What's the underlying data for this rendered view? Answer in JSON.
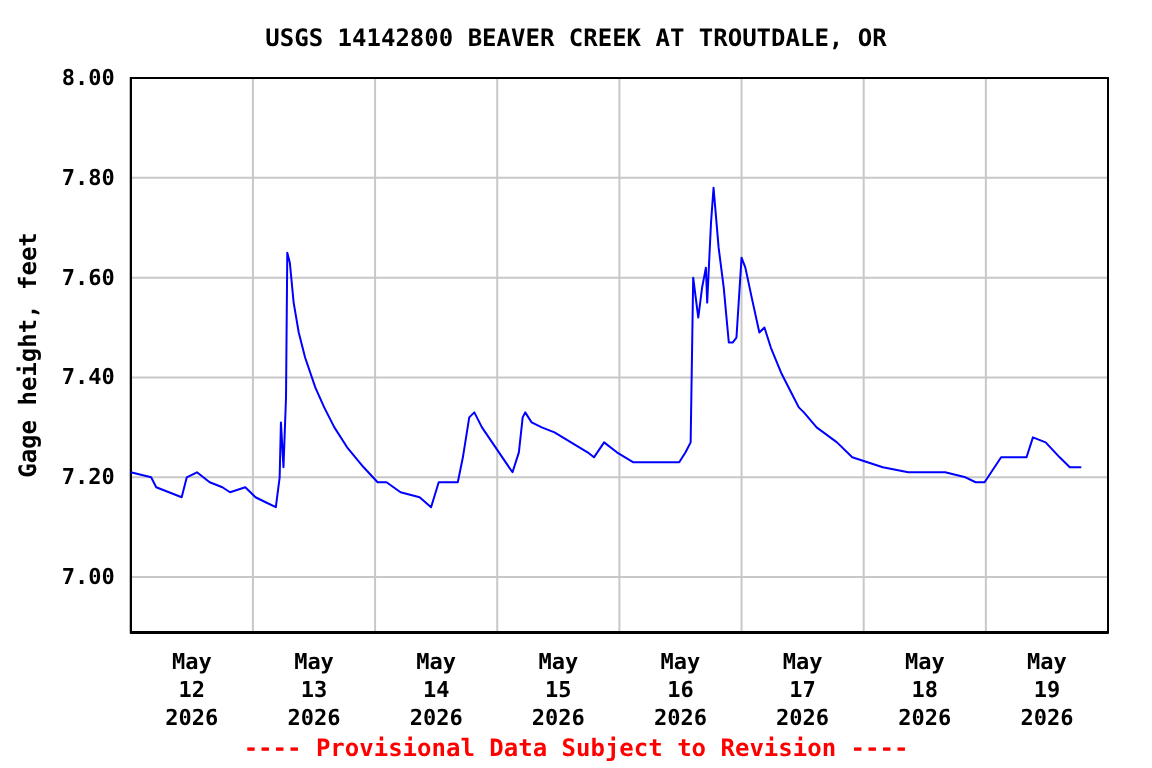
{
  "chart_data": {
    "type": "line",
    "title": "USGS 14142800 BEAVER CREEK AT TROUTDALE, OR",
    "ylabel": "Gage height, feet",
    "annotations": [
      "---- Provisional Data Subject to Revision ----"
    ],
    "xlim": [
      "2026-05-12T00:00",
      "2026-05-20T00:00"
    ],
    "xticks": [
      {
        "value": "2026-05-12T00:00",
        "label": null
      },
      {
        "value": "2026-05-12T12:00",
        "label": "May\n12\n2026"
      },
      {
        "value": "2026-05-13T00:00",
        "label": null
      },
      {
        "value": "2026-05-13T12:00",
        "label": "May\n13\n2026"
      },
      {
        "value": "2026-05-14T00:00",
        "label": null
      },
      {
        "value": "2026-05-14T12:00",
        "label": "May\n14\n2026"
      },
      {
        "value": "2026-05-15T00:00",
        "label": null
      },
      {
        "value": "2026-05-15T12:00",
        "label": "May\n15\n2026"
      },
      {
        "value": "2026-05-16T00:00",
        "label": null
      },
      {
        "value": "2026-05-16T12:00",
        "label": "May\n16\n2026"
      },
      {
        "value": "2026-05-17T00:00",
        "label": null
      },
      {
        "value": "2026-05-17T12:00",
        "label": "May\n17\n2026"
      },
      {
        "value": "2026-05-18T00:00",
        "label": null
      },
      {
        "value": "2026-05-18T12:00",
        "label": "May\n18\n2026"
      },
      {
        "value": "2026-05-19T00:00",
        "label": null
      },
      {
        "value": "2026-05-19T12:00",
        "label": "May\n19\n2026"
      }
    ],
    "ylim": [
      6.89,
      8.0
    ],
    "yticks": [
      {
        "value": 7.0,
        "label": "7.00"
      },
      {
        "value": 7.2,
        "label": "7.20"
      },
      {
        "value": 7.4,
        "label": "7.40"
      },
      {
        "value": 7.6,
        "label": "7.60"
      },
      {
        "value": 7.8,
        "label": "7.80"
      },
      {
        "value": 8.0,
        "label": "8.00"
      }
    ],
    "grid": true,
    "marker": "none",
    "line_style": "solid",
    "x": [
      "2026-05-12T00:00",
      "2026-05-12T04:00",
      "2026-05-12T05:00",
      "2026-05-12T07:30",
      "2026-05-12T10:00",
      "2026-05-12T11:00",
      "2026-05-12T13:00",
      "2026-05-12T15:30",
      "2026-05-12T18:00",
      "2026-05-12T19:30",
      "2026-05-12T22:30",
      "2026-05-13T00:30",
      "2026-05-13T02:30",
      "2026-05-13T04:30",
      "2026-05-13T05:15",
      "2026-05-13T05:30",
      "2026-05-13T06:00",
      "2026-05-13T06:30",
      "2026-05-13T06:45",
      "2026-05-13T07:15",
      "2026-05-13T08:00",
      "2026-05-13T09:00",
      "2026-05-13T10:15",
      "2026-05-13T12:15",
      "2026-05-13T14:00",
      "2026-05-13T16:00",
      "2026-05-13T18:30",
      "2026-05-13T21:45",
      "2026-05-14T00:30",
      "2026-05-14T02:15",
      "2026-05-14T05:00",
      "2026-05-14T08:45",
      "2026-05-14T11:00",
      "2026-05-14T12:30",
      "2026-05-14T16:15",
      "2026-05-14T17:15",
      "2026-05-14T18:30",
      "2026-05-14T19:30",
      "2026-05-14T21:00",
      "2026-05-14T23:00",
      "2026-05-15T01:00",
      "2026-05-15T03:00",
      "2026-05-15T04:15",
      "2026-05-15T05:00",
      "2026-05-15T05:30",
      "2026-05-15T06:45",
      "2026-05-15T08:45",
      "2026-05-15T11:15",
      "2026-05-15T14:30",
      "2026-05-15T17:45",
      "2026-05-15T19:00",
      "2026-05-15T21:00",
      "2026-05-15T23:30",
      "2026-05-16T02:45",
      "2026-05-16T11:45",
      "2026-05-16T13:00",
      "2026-05-16T14:00",
      "2026-05-16T14:30",
      "2026-05-16T15:30",
      "2026-05-16T16:15",
      "2026-05-16T17:00",
      "2026-05-16T17:15",
      "2026-05-16T18:00",
      "2026-05-16T18:30",
      "2026-05-16T19:30",
      "2026-05-16T20:30",
      "2026-05-16T21:30",
      "2026-05-16T22:15",
      "2026-05-16T23:00",
      "2026-05-17T00:00",
      "2026-05-17T00:45",
      "2026-05-17T02:00",
      "2026-05-17T03:30",
      "2026-05-17T04:30",
      "2026-05-17T05:45",
      "2026-05-17T07:45",
      "2026-05-17T09:45",
      "2026-05-17T11:15",
      "2026-05-17T12:15",
      "2026-05-17T14:45",
      "2026-05-17T18:45",
      "2026-05-17T21:45",
      "2026-05-18T03:45",
      "2026-05-18T08:45",
      "2026-05-18T16:00",
      "2026-05-18T20:00",
      "2026-05-18T22:00",
      "2026-05-18T23:45",
      "2026-05-19T03:00",
      "2026-05-19T08:00",
      "2026-05-19T09:15",
      "2026-05-19T11:45",
      "2026-05-19T14:30",
      "2026-05-19T16:30",
      "2026-05-19T18:45"
    ],
    "series": [
      {
        "color": "#0000ff",
        "values": [
          7.21,
          7.2,
          7.18,
          7.17,
          7.16,
          7.2,
          7.21,
          7.19,
          7.18,
          7.17,
          7.18,
          7.16,
          7.15,
          7.14,
          7.2,
          7.31,
          7.22,
          7.36,
          7.65,
          7.63,
          7.55,
          7.49,
          7.44,
          7.38,
          7.34,
          7.3,
          7.26,
          7.22,
          7.19,
          7.19,
          7.17,
          7.16,
          7.14,
          7.19,
          7.19,
          7.24,
          7.32,
          7.33,
          7.3,
          7.27,
          7.24,
          7.21,
          7.25,
          7.32,
          7.33,
          7.31,
          7.3,
          7.29,
          7.27,
          7.25,
          7.24,
          7.27,
          7.25,
          7.23,
          7.23,
          7.25,
          7.27,
          7.6,
          7.52,
          7.58,
          7.62,
          7.55,
          7.71,
          7.78,
          7.66,
          7.58,
          7.47,
          7.47,
          7.48,
          7.64,
          7.62,
          7.56,
          7.49,
          7.5,
          7.46,
          7.41,
          7.37,
          7.34,
          7.33,
          7.3,
          7.27,
          7.24,
          7.22,
          7.21,
          7.21,
          7.2,
          7.19,
          7.19,
          7.24,
          7.24,
          7.28,
          7.27,
          7.24,
          7.22,
          7.22
        ]
      }
    ]
  }
}
